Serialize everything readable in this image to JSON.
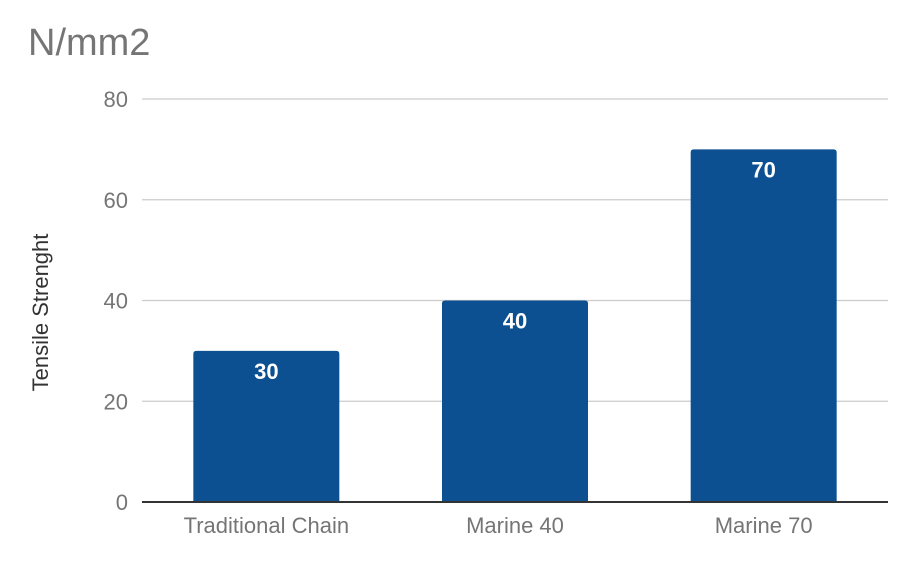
{
  "chart_data": {
    "type": "bar",
    "title": "N/mm2",
    "xlabel": "",
    "ylabel": "Tensile Strenght",
    "categories": [
      "Traditional Chain",
      "Marine 40",
      "Marine 70"
    ],
    "values": [
      30,
      40,
      70
    ],
    "data_labels": [
      "30",
      "40",
      "70"
    ],
    "ylim": [
      0,
      80
    ],
    "yticks": [
      0,
      20,
      40,
      60,
      80
    ],
    "ytick_labels": [
      "0",
      "20",
      "40",
      "60",
      "80"
    ],
    "grid": true,
    "legend": "none",
    "colors": {
      "bar": "#0d5091",
      "grid": "#cccccc",
      "axis": "#333333",
      "tick_text": "#757575",
      "title_text": "#757575",
      "label_text": "#333333",
      "data_label_text": "#ffffff"
    }
  }
}
